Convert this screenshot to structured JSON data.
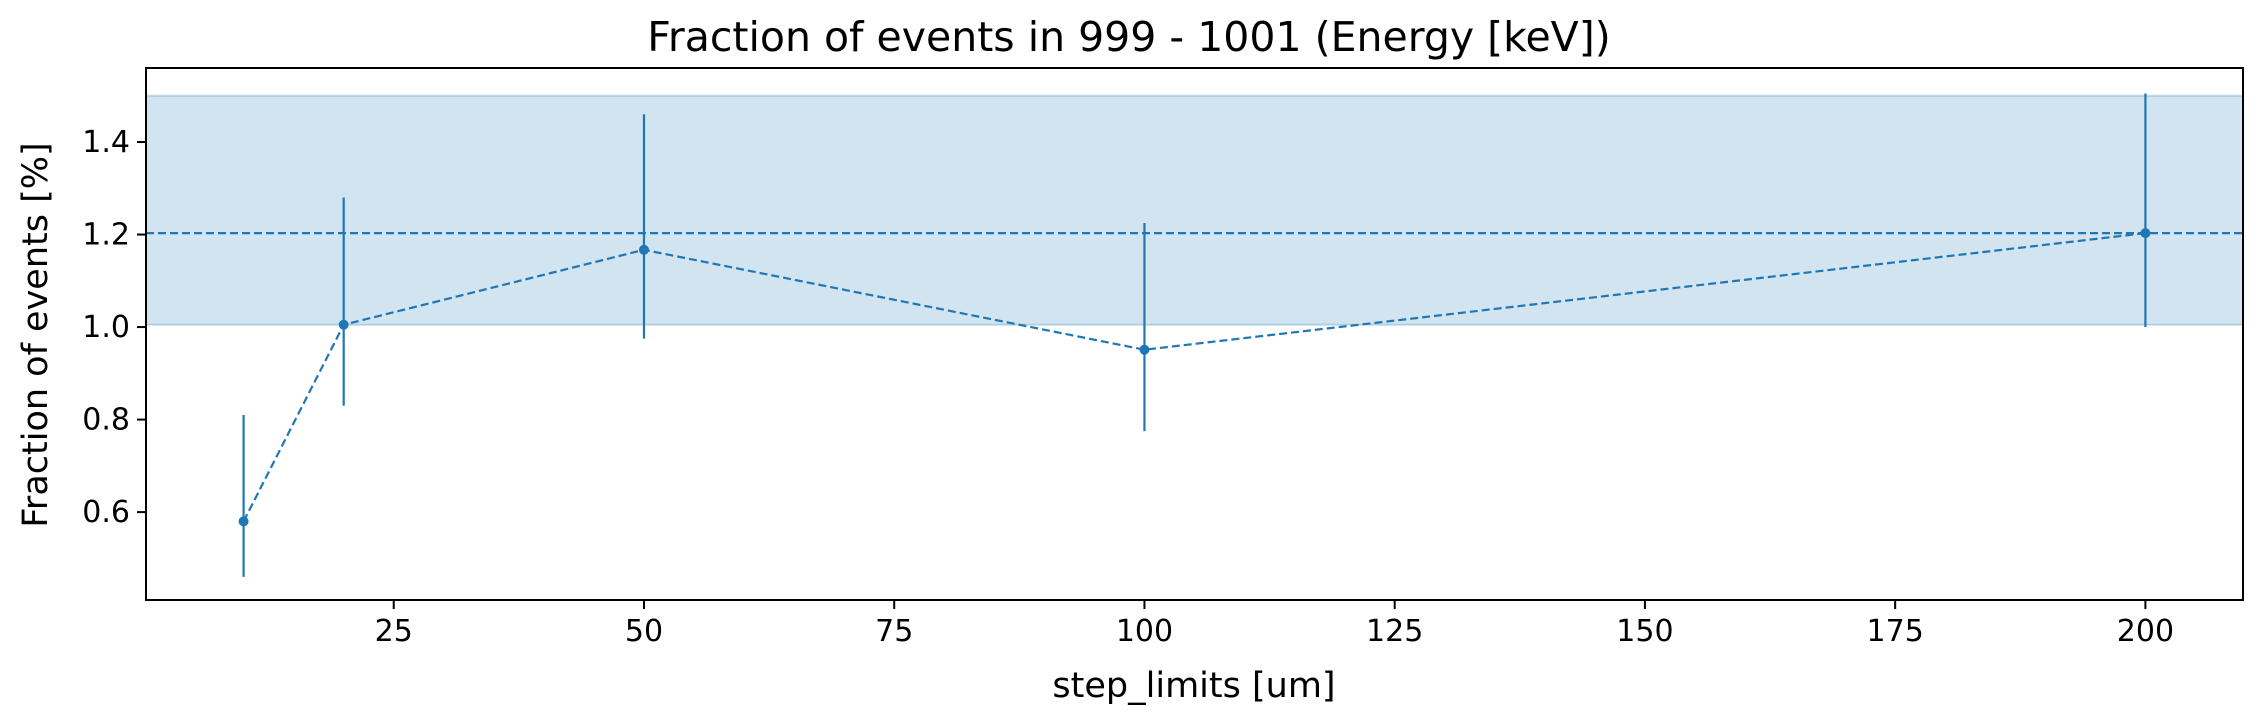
{
  "chart_data": {
    "type": "line",
    "title": "Fraction of events in 999 - 1001 (Energy [keV])",
    "xlabel": "step_limits [um]",
    "ylabel": "Fraction of events [%]",
    "xlim": [
      0.25,
      209.75
    ],
    "ylim": [
      0.41,
      1.56
    ],
    "xticks": [
      25,
      50,
      75,
      100,
      125,
      150,
      175,
      200
    ],
    "yticks": [
      0.6,
      0.8,
      1.0,
      1.2,
      1.4
    ],
    "xtick_labels": [
      "25",
      "50",
      "75",
      "100",
      "125",
      "150",
      "175",
      "200"
    ],
    "ytick_labels": [
      "0.6",
      "0.8",
      "1.0",
      "1.2",
      "1.4"
    ],
    "grid": false,
    "series": [
      {
        "x": [
          10,
          20,
          50,
          100,
          200
        ],
        "y": [
          0.58,
          1.005,
          1.167,
          0.951,
          1.203
        ],
        "yerr_low": [
          0.46,
          0.83,
          0.975,
          0.775,
          1.0
        ],
        "yerr_high": [
          0.81,
          1.28,
          1.46,
          1.225,
          1.505
        ],
        "line_style": "dashed",
        "marker": "circle",
        "color": "#1f77b4"
      }
    ],
    "reference": {
      "value": 1.203,
      "band": [
        1.005,
        1.5
      ],
      "line_style": "dashed",
      "color": "#1f77b4",
      "band_color": "#1f77b4",
      "band_opacity": 0.2
    }
  }
}
